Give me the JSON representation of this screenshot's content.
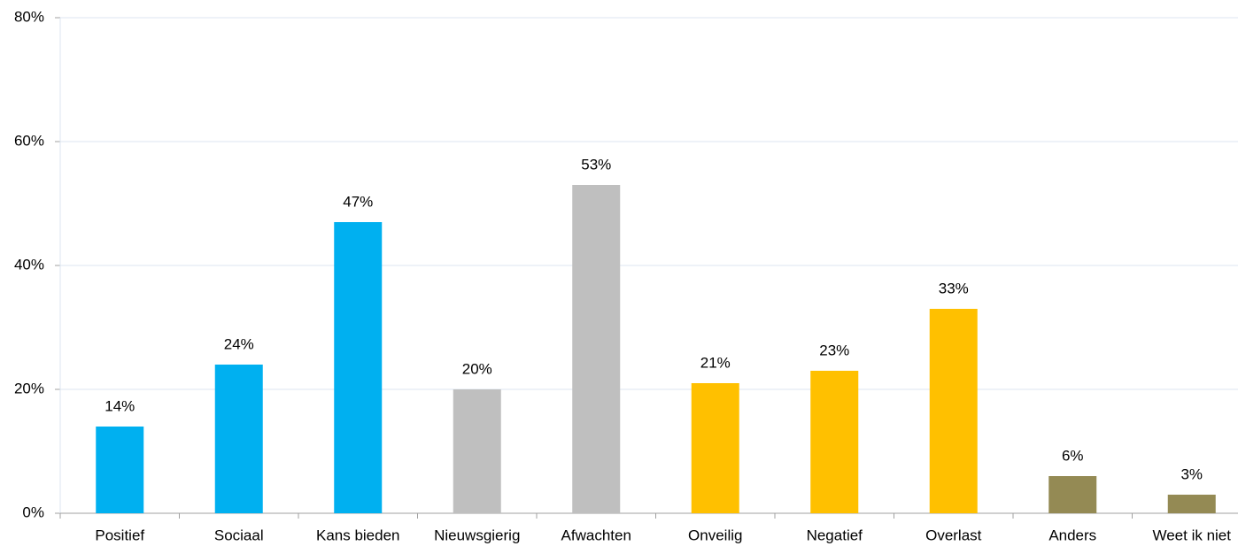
{
  "chart_data": {
    "type": "bar",
    "categories": [
      "Positief",
      "Sociaal",
      "Kans bieden",
      "Nieuwsgierig",
      "Afwachten",
      "Onveilig",
      "Negatief",
      "Overlast",
      "Anders",
      "Weet ik niet"
    ],
    "values": [
      14,
      24,
      47,
      20,
      53,
      21,
      23,
      33,
      6,
      3
    ],
    "value_labels": [
      "14%",
      "24%",
      "47%",
      "20%",
      "53%",
      "21%",
      "23%",
      "33%",
      "6%",
      "3%"
    ],
    "colors": [
      "#00b0f0",
      "#00b0f0",
      "#00b0f0",
      "#bfbfbf",
      "#bfbfbf",
      "#ffc000",
      "#ffc000",
      "#ffc000",
      "#948a54",
      "#948a54"
    ],
    "ylim": [
      0,
      80
    ],
    "yticks": [
      {
        "value": 0,
        "label": "0%"
      },
      {
        "value": 20,
        "label": "20%"
      },
      {
        "value": 40,
        "label": "40%"
      },
      {
        "value": 60,
        "label": "60%"
      },
      {
        "value": 80,
        "label": "80%"
      }
    ],
    "grid": true
  }
}
